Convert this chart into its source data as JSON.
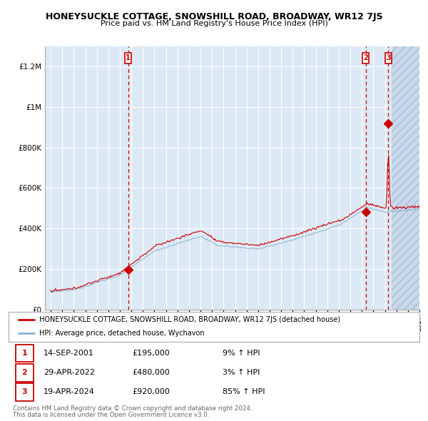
{
  "title": "HONEYSUCKLE COTTAGE, SNOWSHILL ROAD, BROADWAY, WR12 7JS",
  "subtitle": "Price paid vs. HM Land Registry's House Price Index (HPI)",
  "legend_line1": "HONEYSUCKLE COTTAGE, SNOWSHILL ROAD, BROADWAY, WR12 7JS (detached house)",
  "legend_line2": "HPI: Average price, detached house, Wychavon",
  "footer_line1": "Contains HM Land Registry data © Crown copyright and database right 2024.",
  "footer_line2": "This data is licensed under the Open Government Licence v3.0.",
  "transactions": [
    {
      "num": 1,
      "date": "14-SEP-2001",
      "price": 195000,
      "pct": "9%",
      "dir": "↑"
    },
    {
      "num": 2,
      "date": "29-APR-2022",
      "price": 480000,
      "pct": "3%",
      "dir": "↑"
    },
    {
      "num": 3,
      "date": "19-APR-2024",
      "price": 920000,
      "pct": "85%",
      "dir": "↑"
    }
  ],
  "sale_years": [
    2001.72,
    2022.33,
    2024.3
  ],
  "sale_prices": [
    195000,
    480000,
    920000
  ],
  "ylim": [
    0,
    1300000
  ],
  "xlim_start": 1994.5,
  "xlim_end": 2027.0,
  "hatch_start": 2024.6,
  "bg_color": "#dce9f5",
  "red_color": "#cc0000",
  "blue_color": "#8ab4d4",
  "hatch_bg": "#c8d8ea"
}
